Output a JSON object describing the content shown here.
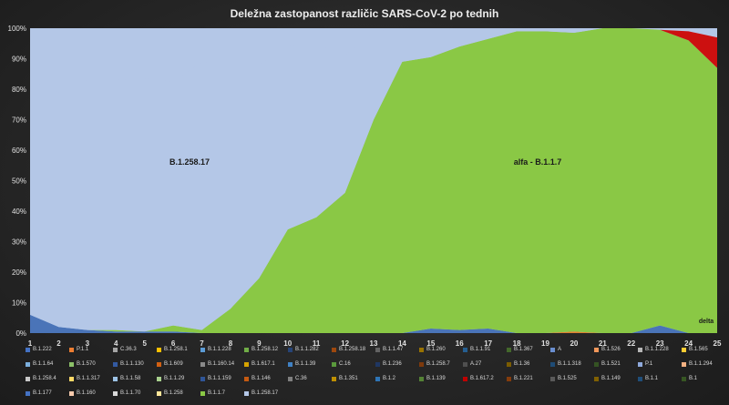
{
  "chart_data": {
    "type": "area",
    "stacked": true,
    "percent": true,
    "title": "Deležna zastopanost različic SARS-CoV-2 po tednih",
    "xlabel": "",
    "ylabel": "",
    "x": [
      1,
      2,
      3,
      4,
      5,
      6,
      7,
      8,
      9,
      10,
      11,
      12,
      13,
      14,
      15,
      16,
      17,
      18,
      19,
      20,
      21,
      22,
      23,
      24,
      25
    ],
    "ylim": [
      0,
      100
    ],
    "yticks": [
      "0%",
      "10%",
      "20%",
      "30%",
      "40%",
      "50%",
      "60%",
      "70%",
      "80%",
      "90%",
      "100%"
    ],
    "grid": false,
    "legend_position": "bottom",
    "series": [
      {
        "name": "B.1.222",
        "color": "#4a74b8",
        "values": [
          6,
          2,
          1,
          0.5,
          0.5,
          0.5,
          0,
          0,
          0,
          0,
          0,
          0,
          0,
          0,
          1.5,
          1,
          1.5,
          0,
          0,
          0,
          0,
          0,
          2.5,
          0,
          0
        ]
      },
      {
        "name": "P.1.1",
        "color": "#e0802e",
        "values": [
          0,
          0,
          0,
          0,
          0,
          0,
          0,
          0,
          0,
          0,
          0,
          0,
          0,
          0,
          0,
          0,
          0,
          0,
          0,
          0.5,
          0,
          0,
          0,
          0,
          0
        ]
      },
      {
        "name": "B.1.1.7",
        "color": "#8ac845",
        "values": [
          0,
          0,
          0,
          0.5,
          0,
          2,
          1,
          8,
          18,
          34,
          38,
          46,
          70,
          89,
          89,
          93,
          95,
          99,
          99,
          98,
          100,
          100,
          97,
          96,
          87
        ]
      },
      {
        "name": "B.1.617.2",
        "color": "#cc1010",
        "values": [
          0,
          0,
          0,
          0,
          0,
          0,
          0,
          0,
          0,
          0,
          0,
          0,
          0,
          0,
          0,
          0,
          0,
          0,
          0,
          0,
          0,
          0,
          0,
          3,
          10
        ]
      },
      {
        "name": "B.1.258.17",
        "color": "#b4c7e7",
        "values": [
          77,
          77,
          82,
          82,
          83,
          80,
          88,
          80,
          70,
          60,
          57,
          45,
          29,
          11,
          9,
          6,
          3.5,
          1,
          1,
          1.5,
          0,
          0,
          0,
          0,
          0
        ]
      }
    ],
    "legend_entries": [
      "B.1.222",
      "P.1.1",
      "C.36.3",
      "B.1.258.1",
      "B.1.1.228",
      "B.1.258.12",
      "B.1.1.282",
      "B.1.258.18",
      "B.1.1.47",
      "B.1.260",
      "B.1.1.91",
      "B.1.367",
      "A",
      "B.1.526",
      "B.1.1.228",
      "B.1.565",
      "B.1.1.64",
      "B.1.570",
      "B.1.1.130",
      "B.1.609",
      "B.1.160.14",
      "B.1.617.1",
      "B.1.1.39",
      "C.16",
      "B.1.236",
      "B.1.258.7",
      "A.27",
      "B.1.36",
      "B.1.1.318",
      "B.1.521",
      "P.1",
      "B.1.1.294",
      "B.1.258.4",
      "B.1.1.317",
      "B.1.1.58",
      "B.1.1.29",
      "B.1.1.159",
      "B.1.146",
      "C.36",
      "B.1.351",
      "B.1.2",
      "B.1.139",
      "B.1.617.2",
      "B.1.221",
      "B.1.525",
      "B.1.149",
      "B.1.1",
      "B.1",
      "B.1.177",
      "B.1.160",
      "B.1.1.70",
      "B.1.258",
      "B.1.1.7",
      "B.1.258.17"
    ],
    "legend_colors": [
      "#4472c4",
      "#ed7d31",
      "#a5a5a5",
      "#ffc000",
      "#5b9bd5",
      "#70ad47",
      "#264478",
      "#9e480e",
      "#636363",
      "#997300",
      "#255e91",
      "#43682b",
      "#698ed0",
      "#f1975a",
      "#b7b7b7",
      "#ffcd33",
      "#7cafdd",
      "#8cc168",
      "#335aa1",
      "#d26012",
      "#8a8a8a",
      "#d6a300",
      "#4082c4",
      "#5a9a3c",
      "#1f3763",
      "#7e3a0c",
      "#4f4f4f",
      "#7b5c00",
      "#1e4b75",
      "#355323",
      "#8faadc",
      "#f4b183",
      "#c9c9c9",
      "#ffd966",
      "#9dc3e6",
      "#a9d18e",
      "#2f5597",
      "#c55a11",
      "#7f7f7f",
      "#bf9000",
      "#2e75b6",
      "#548235",
      "#c00000",
      "#843c0c",
      "#595959",
      "#806000",
      "#1f4e79",
      "#375623",
      "#4472c4",
      "#f8cbad",
      "#d9d9d9",
      "#ffe699",
      "#8ac845",
      "#b4c7e7"
    ],
    "annotations": {
      "b1258": "B.1.258.17",
      "alfa": "alfa - B.1.1.7",
      "delta": "delta"
    }
  }
}
